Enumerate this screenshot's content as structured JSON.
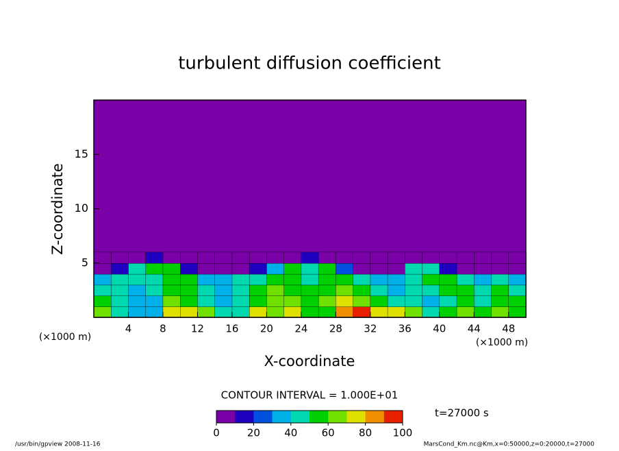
{
  "chart_data": {
    "type": "contour",
    "title": "turbulent diffusion coefficient",
    "xlabel": "X-coordinate",
    "ylabel": "Z-coordinate",
    "xunit": "(×1000 m)",
    "xlim": [
      0,
      50
    ],
    "ylim": [
      0,
      20
    ],
    "xticks": [
      4,
      8,
      12,
      16,
      20,
      24,
      28,
      32,
      36,
      40,
      44,
      48
    ],
    "yticks": [
      5,
      10,
      15
    ],
    "x": [
      1,
      3,
      5,
      7,
      9,
      11,
      13,
      15,
      17,
      19,
      21,
      23,
      25,
      27,
      29,
      31,
      33,
      35,
      37,
      39,
      41,
      43,
      45,
      47,
      49
    ],
    "y": [
      0.5,
      1.5,
      2.5,
      3.5,
      4.5,
      5.5
    ],
    "z": [
      [
        60,
        45,
        30,
        35,
        70,
        75,
        60,
        40,
        45,
        70,
        60,
        70,
        55,
        55,
        80,
        90,
        70,
        75,
        60,
        45,
        55,
        60,
        50,
        60,
        55
      ],
      [
        50,
        40,
        30,
        35,
        60,
        55,
        45,
        35,
        40,
        55,
        60,
        65,
        55,
        60,
        75,
        60,
        55,
        40,
        40,
        35,
        45,
        55,
        45,
        55,
        50
      ],
      [
        45,
        40,
        35,
        40,
        50,
        55,
        40,
        35,
        40,
        50,
        60,
        55,
        50,
        55,
        60,
        50,
        45,
        35,
        40,
        45,
        50,
        50,
        45,
        55,
        45
      ],
      [
        35,
        40,
        45,
        45,
        50,
        55,
        30,
        35,
        40,
        45,
        50,
        55,
        45,
        50,
        55,
        40,
        30,
        30,
        45,
        55,
        50,
        40,
        35,
        40,
        35
      ],
      [
        5,
        10,
        45,
        50,
        55,
        10,
        5,
        5,
        5,
        10,
        30,
        50,
        45,
        50,
        20,
        5,
        5,
        5,
        40,
        45,
        10,
        5,
        5,
        5,
        5
      ],
      [
        0,
        0,
        0,
        10,
        5,
        0,
        0,
        0,
        0,
        0,
        5,
        5,
        10,
        5,
        0,
        0,
        0,
        0,
        0,
        0,
        0,
        0,
        0,
        0,
        0
      ]
    ],
    "colormap": [
      "#7a00a8",
      "#2000c0",
      "#0050e0",
      "#00b0e8",
      "#00d8b0",
      "#00d000",
      "#70e000",
      "#e0e000",
      "#f09000",
      "#e82000"
    ],
    "clim": [
      0,
      100
    ],
    "cticks": [
      0,
      20,
      40,
      60,
      80,
      100
    ],
    "contour_interval": "CONTOUR INTERVAL = 1.000E+01",
    "time_label": "t=27000 s",
    "footer_left": "/usr/bin/gpview   2008-11-16",
    "footer_right": "MarsCond_Km.nc@Km,x=0:50000,z=0:20000,t=27000"
  }
}
